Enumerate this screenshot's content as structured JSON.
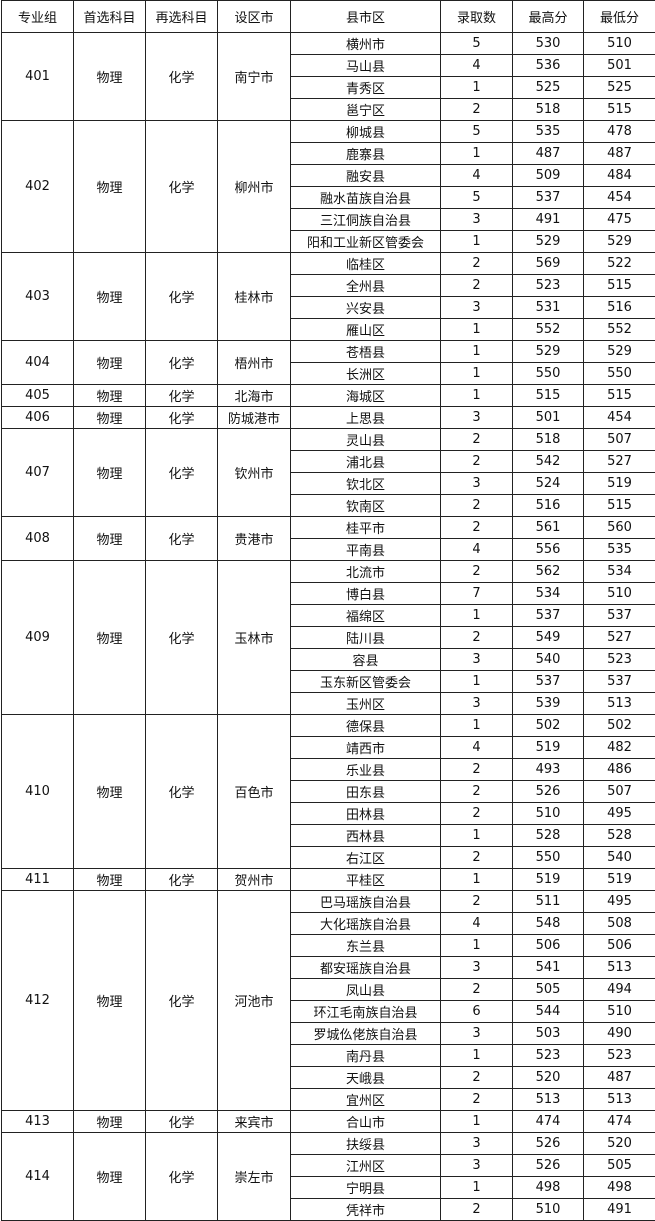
{
  "headers": [
    "专业组",
    "首选科目",
    "再选科目",
    "设区市",
    "县市区",
    "录取数",
    "最高分",
    "最低分"
  ],
  "groups": [
    {
      "group": "401",
      "first": "物理",
      "second": "化学",
      "city": "南宁市",
      "rows": [
        [
          "横州市",
          "5",
          "530",
          "510"
        ],
        [
          "马山县",
          "4",
          "536",
          "501"
        ],
        [
          "青秀区",
          "1",
          "525",
          "525"
        ],
        [
          "邕宁区",
          "2",
          "518",
          "515"
        ]
      ]
    },
    {
      "group": "402",
      "first": "物理",
      "second": "化学",
      "city": "柳州市",
      "rows": [
        [
          "柳城县",
          "5",
          "535",
          "478"
        ],
        [
          "鹿寨县",
          "1",
          "487",
          "487"
        ],
        [
          "融安县",
          "4",
          "509",
          "484"
        ],
        [
          "融水苗族自治县",
          "5",
          "537",
          "454"
        ],
        [
          "三江侗族自治县",
          "3",
          "491",
          "475"
        ],
        [
          "阳和工业新区管委会",
          "1",
          "529",
          "529"
        ]
      ]
    },
    {
      "group": "403",
      "first": "物理",
      "second": "化学",
      "city": "桂林市",
      "rows": [
        [
          "临桂区",
          "2",
          "569",
          "522"
        ],
        [
          "全州县",
          "2",
          "523",
          "515"
        ],
        [
          "兴安县",
          "3",
          "531",
          "516"
        ],
        [
          "雁山区",
          "1",
          "552",
          "552"
        ]
      ]
    },
    {
      "group": "404",
      "first": "物理",
      "second": "化学",
      "city": "梧州市",
      "rows": [
        [
          "苍梧县",
          "1",
          "529",
          "529"
        ],
        [
          "长洲区",
          "1",
          "550",
          "550"
        ]
      ]
    },
    {
      "group": "405",
      "first": "物理",
      "second": "化学",
      "city": "北海市",
      "rows": [
        [
          "海城区",
          "1",
          "515",
          "515"
        ]
      ]
    },
    {
      "group": "406",
      "first": "物理",
      "second": "化学",
      "city": "防城港市",
      "rows": [
        [
          "上思县",
          "3",
          "501",
          "454"
        ]
      ]
    },
    {
      "group": "407",
      "first": "物理",
      "second": "化学",
      "city": "钦州市",
      "rows": [
        [
          "灵山县",
          "2",
          "518",
          "507"
        ],
        [
          "浦北县",
          "2",
          "542",
          "527"
        ],
        [
          "钦北区",
          "3",
          "524",
          "519"
        ],
        [
          "钦南区",
          "2",
          "516",
          "515"
        ]
      ]
    },
    {
      "group": "408",
      "first": "物理",
      "second": "化学",
      "city": "贵港市",
      "rows": [
        [
          "桂平市",
          "2",
          "561",
          "560"
        ],
        [
          "平南县",
          "4",
          "556",
          "535"
        ]
      ]
    },
    {
      "group": "409",
      "first": "物理",
      "second": "化学",
      "city": "玉林市",
      "rows": [
        [
          "北流市",
          "2",
          "562",
          "534"
        ],
        [
          "博白县",
          "7",
          "534",
          "510"
        ],
        [
          "福绵区",
          "1",
          "537",
          "537"
        ],
        [
          "陆川县",
          "2",
          "549",
          "527"
        ],
        [
          "容县",
          "3",
          "540",
          "523"
        ],
        [
          "玉东新区管委会",
          "1",
          "537",
          "537"
        ],
        [
          "玉州区",
          "3",
          "539",
          "513"
        ]
      ]
    },
    {
      "group": "410",
      "first": "物理",
      "second": "化学",
      "city": "百色市",
      "rows": [
        [
          "德保县",
          "1",
          "502",
          "502"
        ],
        [
          "靖西市",
          "4",
          "519",
          "482"
        ],
        [
          "乐业县",
          "2",
          "493",
          "486"
        ],
        [
          "田东县",
          "2",
          "526",
          "507"
        ],
        [
          "田林县",
          "2",
          "510",
          "495"
        ],
        [
          "西林县",
          "1",
          "528",
          "528"
        ],
        [
          "右江区",
          "2",
          "550",
          "540"
        ]
      ]
    },
    {
      "group": "411",
      "first": "物理",
      "second": "化学",
      "city": "贺州市",
      "rows": [
        [
          "平桂区",
          "1",
          "519",
          "519"
        ]
      ]
    },
    {
      "group": "412",
      "first": "物理",
      "second": "化学",
      "city": "河池市",
      "rows": [
        [
          "巴马瑶族自治县",
          "2",
          "511",
          "495"
        ],
        [
          "大化瑶族自治县",
          "4",
          "548",
          "508"
        ],
        [
          "东兰县",
          "1",
          "506",
          "506"
        ],
        [
          "都安瑶族自治县",
          "3",
          "541",
          "513"
        ],
        [
          "凤山县",
          "2",
          "505",
          "494"
        ],
        [
          "环江毛南族自治县",
          "6",
          "544",
          "510"
        ],
        [
          "罗城仫佬族自治县",
          "3",
          "503",
          "490"
        ],
        [
          "南丹县",
          "1",
          "523",
          "523"
        ],
        [
          "天峨县",
          "2",
          "520",
          "487"
        ],
        [
          "宜州区",
          "2",
          "513",
          "513"
        ]
      ]
    },
    {
      "group": "413",
      "first": "物理",
      "second": "化学",
      "city": "来宾市",
      "rows": [
        [
          "合山市",
          "1",
          "474",
          "474"
        ]
      ]
    },
    {
      "group": "414",
      "first": "物理",
      "second": "化学",
      "city": "崇左市",
      "rows": [
        [
          "扶绥县",
          "3",
          "526",
          "520"
        ],
        [
          "江州区",
          "3",
          "526",
          "505"
        ],
        [
          "宁明县",
          "1",
          "498",
          "498"
        ],
        [
          "凭祥市",
          "2",
          "510",
          "491"
        ]
      ]
    }
  ]
}
